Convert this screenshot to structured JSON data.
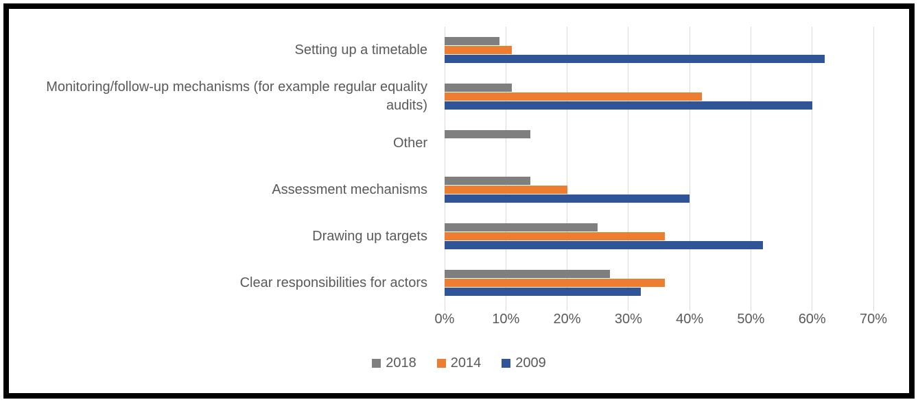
{
  "chart_data": {
    "type": "bar",
    "orientation": "horizontal",
    "title": "",
    "categories": [
      "Setting up a timetable",
      "Monitoring/follow-up mechanisms (for example regular equality audits)",
      "Other",
      "Assessment mechanisms",
      "Drawing up targets",
      "Clear responsibilities for actors"
    ],
    "series": [
      {
        "name": "2018",
        "color": "#7f7f7f",
        "values": [
          9,
          11,
          14,
          14,
          25,
          27
        ]
      },
      {
        "name": "2014",
        "color": "#ed7d31",
        "values": [
          11,
          42,
          0,
          20,
          36,
          36
        ]
      },
      {
        "name": "2009",
        "color": "#2f5597",
        "values": [
          62,
          60,
          0,
          40,
          52,
          32
        ]
      }
    ],
    "x_ticks": [
      "0%",
      "10%",
      "20%",
      "30%",
      "40%",
      "50%",
      "60%",
      "70%"
    ],
    "xlim": [
      0,
      70
    ],
    "grid": true,
    "legend_position": "bottom",
    "colors": {
      "gridline": "#d9d9d9",
      "axis_text": "#595959",
      "frame_border": "#000000",
      "background": "#ffffff"
    }
  }
}
